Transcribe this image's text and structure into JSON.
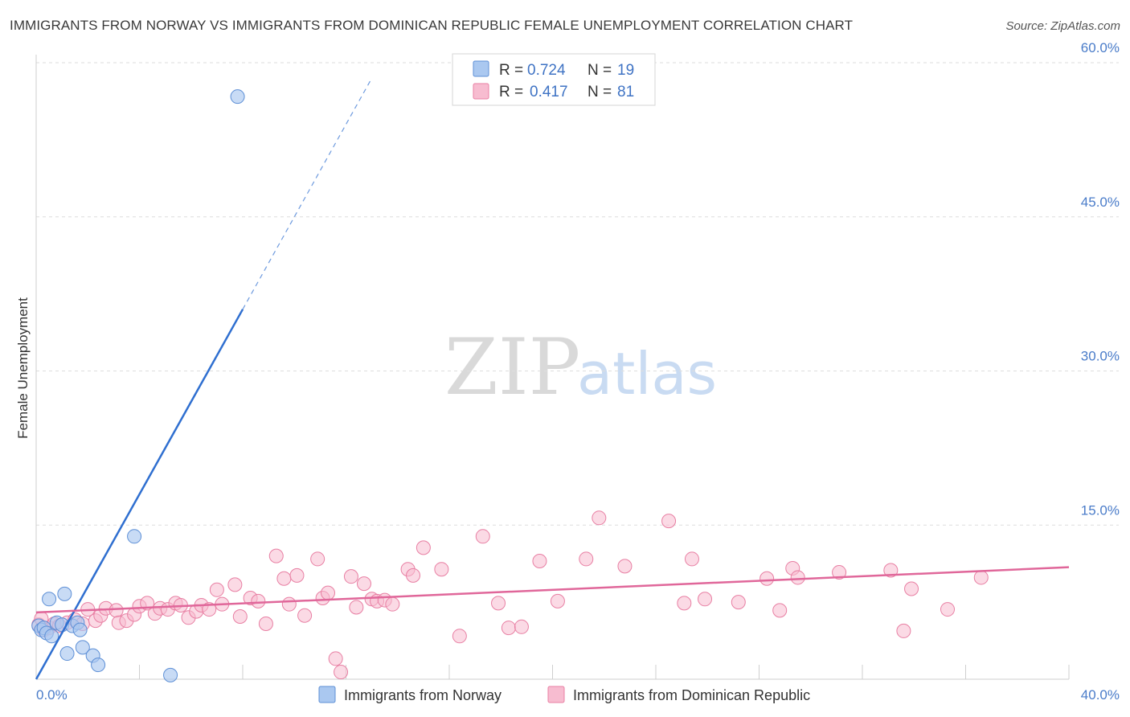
{
  "title": "IMMIGRANTS FROM NORWAY VS IMMIGRANTS FROM DOMINICAN REPUBLIC FEMALE UNEMPLOYMENT CORRELATION CHART",
  "source": "Source: ZipAtlas.com",
  "watermark": {
    "zip": "ZIP",
    "atlas": "atlas"
  },
  "colors": {
    "norway_fill": "#aac8f0",
    "norway_stroke": "#5d8fd6",
    "norway_line": "#2f6fd0",
    "dr_fill": "#f7bcd0",
    "dr_stroke": "#e87fa3",
    "dr_line": "#e0679a",
    "grid": "#dddddd",
    "tick_label": "#4a7cc9"
  },
  "legend": {
    "rows": [
      {
        "r_label": "R =",
        "r_value": "0.724",
        "n_label": "N =",
        "n_value": "19"
      },
      {
        "r_label": "R =",
        "r_value": "0.417",
        "n_label": "N =",
        "n_value": "81"
      }
    ]
  },
  "chart_data": {
    "type": "scatter",
    "title": "IMMIGRANTS FROM NORWAY VS IMMIGRANTS FROM DOMINICAN REPUBLIC FEMALE UNEMPLOYMENT CORRELATION CHART",
    "xlabel": "",
    "ylabel": "Female Unemployment",
    "xlim": [
      0,
      40
    ],
    "ylim": [
      0,
      60
    ],
    "x_tick_labels": [
      "0.0%",
      "40.0%"
    ],
    "y_ticks": [
      15,
      30,
      45,
      60
    ],
    "y_tick_labels": [
      "15.0%",
      "30.0%",
      "45.0%",
      "60.0%"
    ],
    "series": [
      {
        "name": "Immigrants from Norway",
        "r": 0.724,
        "n": 19,
        "trend": {
          "x0": 0.0,
          "y0": 0.0,
          "x1": 8.0,
          "y1": 36.0,
          "x_dash_end": 13.0
        },
        "points": [
          [
            0.1,
            5.2
          ],
          [
            0.2,
            4.8
          ],
          [
            0.3,
            5.0
          ],
          [
            0.4,
            4.5
          ],
          [
            0.5,
            7.8
          ],
          [
            0.6,
            4.2
          ],
          [
            0.8,
            5.5
          ],
          [
            1.0,
            5.3
          ],
          [
            1.1,
            8.3
          ],
          [
            1.2,
            2.5
          ],
          [
            1.4,
            5.2
          ],
          [
            1.6,
            5.5
          ],
          [
            1.7,
            4.8
          ],
          [
            1.8,
            3.1
          ],
          [
            2.2,
            2.3
          ],
          [
            2.4,
            1.4
          ],
          [
            3.8,
            13.9
          ],
          [
            5.2,
            0.4
          ],
          [
            7.8,
            56.7
          ]
        ]
      },
      {
        "name": "Immigrants from Dominican Republic",
        "r": 0.417,
        "n": 81,
        "trend": {
          "x0": 0.0,
          "y0": 6.5,
          "x1": 40.0,
          "y1": 10.9
        },
        "points": [
          [
            0.1,
            5.3
          ],
          [
            0.3,
            4.8
          ],
          [
            0.5,
            5.0
          ],
          [
            0.7,
            5.4
          ],
          [
            0.9,
            5.2
          ],
          [
            1.2,
            5.5
          ],
          [
            1.5,
            5.8
          ],
          [
            1.8,
            5.4
          ],
          [
            2.0,
            6.8
          ],
          [
            2.3,
            5.7
          ],
          [
            2.5,
            6.2
          ],
          [
            2.7,
            6.9
          ],
          [
            3.1,
            6.7
          ],
          [
            3.2,
            5.5
          ],
          [
            3.5,
            5.7
          ],
          [
            3.8,
            6.3
          ],
          [
            4.0,
            7.1
          ],
          [
            4.3,
            7.4
          ],
          [
            4.6,
            6.4
          ],
          [
            4.8,
            6.9
          ],
          [
            5.1,
            6.8
          ],
          [
            5.4,
            7.4
          ],
          [
            5.6,
            7.2
          ],
          [
            5.9,
            6.0
          ],
          [
            6.2,
            6.6
          ],
          [
            6.4,
            7.2
          ],
          [
            6.7,
            6.8
          ],
          [
            7.0,
            8.7
          ],
          [
            7.2,
            7.3
          ],
          [
            7.7,
            9.2
          ],
          [
            7.9,
            6.1
          ],
          [
            8.3,
            7.9
          ],
          [
            8.6,
            7.6
          ],
          [
            8.9,
            5.4
          ],
          [
            9.3,
            12.0
          ],
          [
            9.6,
            9.8
          ],
          [
            9.8,
            7.3
          ],
          [
            10.1,
            10.1
          ],
          [
            10.4,
            6.2
          ],
          [
            10.9,
            11.7
          ],
          [
            11.1,
            7.9
          ],
          [
            11.3,
            8.4
          ],
          [
            11.6,
            2.0
          ],
          [
            11.8,
            0.7
          ],
          [
            12.2,
            10.0
          ],
          [
            12.4,
            7.0
          ],
          [
            12.7,
            9.3
          ],
          [
            13.0,
            7.8
          ],
          [
            13.2,
            7.6
          ],
          [
            13.5,
            7.7
          ],
          [
            13.8,
            7.3
          ],
          [
            14.4,
            10.7
          ],
          [
            14.6,
            10.1
          ],
          [
            15.0,
            12.8
          ],
          [
            15.7,
            10.7
          ],
          [
            16.4,
            4.2
          ],
          [
            17.3,
            13.9
          ],
          [
            17.9,
            7.4
          ],
          [
            18.3,
            5.0
          ],
          [
            18.8,
            5.1
          ],
          [
            19.5,
            11.5
          ],
          [
            20.2,
            7.6
          ],
          [
            21.3,
            11.7
          ],
          [
            21.8,
            15.7
          ],
          [
            22.8,
            11.0
          ],
          [
            24.5,
            15.4
          ],
          [
            25.1,
            7.4
          ],
          [
            25.4,
            11.7
          ],
          [
            25.9,
            7.8
          ],
          [
            27.2,
            7.5
          ],
          [
            28.3,
            9.8
          ],
          [
            28.8,
            6.7
          ],
          [
            29.3,
            10.8
          ],
          [
            29.5,
            9.9
          ],
          [
            31.1,
            10.4
          ],
          [
            33.1,
            10.6
          ],
          [
            33.6,
            4.7
          ],
          [
            33.9,
            8.8
          ],
          [
            35.3,
            6.8
          ],
          [
            36.6,
            9.9
          ],
          [
            0.2,
            5.9
          ]
        ]
      }
    ],
    "legend": [
      "Immigrants from Norway",
      "Immigrants from Dominican Republic"
    ],
    "grid": true,
    "legend_placement": "top-center"
  }
}
